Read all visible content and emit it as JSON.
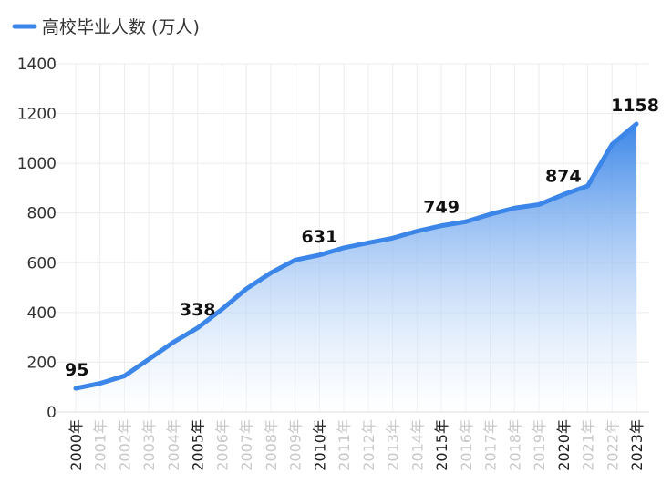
{
  "chart_data": {
    "type": "area",
    "title": "",
    "xlabel": "",
    "ylabel": "",
    "ylim": [
      0,
      1400
    ],
    "yticks": [
      0,
      200,
      400,
      600,
      800,
      1000,
      1200,
      1400
    ],
    "grid": true,
    "legend_position": "top-left",
    "categories": [
      "2000年",
      "2001年",
      "2002年",
      "2003年",
      "2004年",
      "2005年",
      "2006年",
      "2007年",
      "2008年",
      "2009年",
      "2010年",
      "2011年",
      "2012年",
      "2013年",
      "2014年",
      "2015年",
      "2016年",
      "2017年",
      "2018年",
      "2019年",
      "2020年",
      "2021年",
      "2022年",
      "2023年"
    ],
    "major_categories": [
      "2000年",
      "2005年",
      "2010年",
      "2015年",
      "2020年",
      "2023年"
    ],
    "series": [
      {
        "name": "高校毕业人数 (万人)",
        "values": [
          95,
          115,
          145,
          212,
          280,
          338,
          413,
          495,
          559,
          611,
          631,
          660,
          680,
          699,
          727,
          749,
          765,
          795,
          820,
          834,
          874,
          909,
          1076,
          1158
        ]
      }
    ],
    "data_labels": [
      {
        "category": "2000年",
        "text": "95"
      },
      {
        "category": "2005年",
        "text": "338"
      },
      {
        "category": "2010年",
        "text": "631"
      },
      {
        "category": "2015年",
        "text": "749"
      },
      {
        "category": "2020年",
        "text": "874"
      },
      {
        "category": "2023年",
        "text": "1158"
      }
    ],
    "colors": {
      "line": "#3b86e8",
      "area_top": "#3b86e8",
      "area_bottom": "#ffffff",
      "grid": "#ececec",
      "major_label": "#222222",
      "minor_label": "#c9c9c9"
    }
  }
}
